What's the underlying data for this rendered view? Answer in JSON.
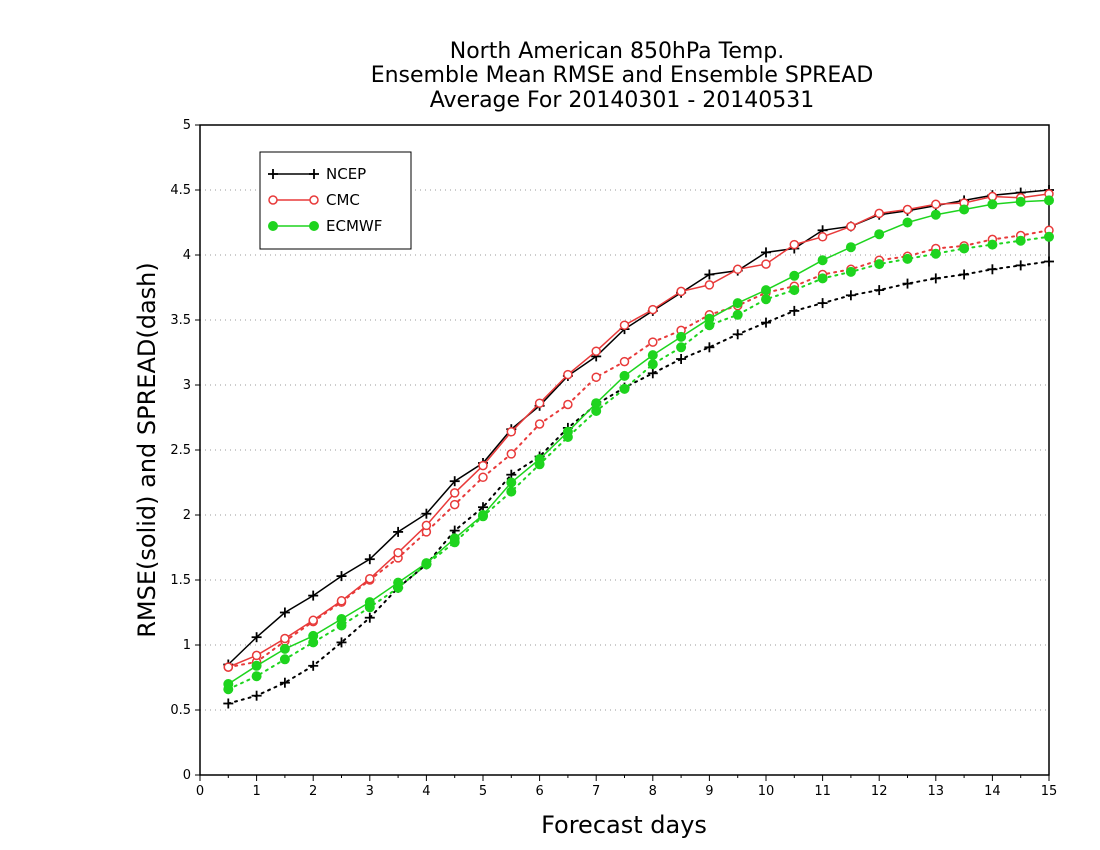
{
  "chart_data": {
    "type": "line",
    "title": [
      "North American 850hPa Temp.",
      "Ensemble Mean RMSE and Ensemble SPREAD",
      "Average For 20140301 - 20140531"
    ],
    "xlabel": "Forecast days",
    "ylabel": "RMSE(solid) and SPREAD(dash)",
    "xlim": [
      0,
      15
    ],
    "ylim": [
      0,
      5
    ],
    "x_ticks": [
      "0",
      "1",
      "2",
      "3",
      "4",
      "5",
      "6",
      "7",
      "8",
      "9",
      "10",
      "11",
      "12",
      "13",
      "14",
      "15"
    ],
    "y_ticks": [
      "0",
      "0.5",
      "1",
      "1.5",
      "2",
      "2.5",
      "3",
      "3.5",
      "4",
      "4.5",
      "5"
    ],
    "grid": "dotted horizontal",
    "legend_position": "top-left",
    "x": [
      0.5,
      1,
      1.5,
      2,
      2.5,
      3,
      3.5,
      4,
      4.5,
      5,
      5.5,
      6,
      6.5,
      7,
      7.5,
      8,
      8.5,
      9,
      9.5,
      10,
      10.5,
      11,
      11.5,
      12,
      12.5,
      13,
      13.5,
      14,
      14.5,
      15
    ],
    "series": [
      {
        "name": "NCEP",
        "color": "#000000",
        "marker": "plus",
        "rmse": [
          0.85,
          1.06,
          1.25,
          1.38,
          1.53,
          1.66,
          1.87,
          2.01,
          2.26,
          2.4,
          2.66,
          2.84,
          3.07,
          3.22,
          3.43,
          3.57,
          3.71,
          3.85,
          3.88,
          4.02,
          4.05,
          4.19,
          4.22,
          4.31,
          4.34,
          4.38,
          4.42,
          4.46,
          4.48,
          4.5
        ],
        "spread": [
          0.55,
          0.61,
          0.71,
          0.84,
          1.02,
          1.21,
          1.44,
          1.62,
          1.88,
          2.06,
          2.31,
          2.45,
          2.67,
          2.85,
          2.98,
          3.09,
          3.2,
          3.29,
          3.39,
          3.48,
          3.57,
          3.63,
          3.69,
          3.73,
          3.78,
          3.82,
          3.85,
          3.89,
          3.92,
          3.95
        ]
      },
      {
        "name": "CMC",
        "color": "#e83a3a",
        "marker": "open-circle",
        "rmse": [
          0.83,
          0.92,
          1.05,
          1.19,
          1.34,
          1.51,
          1.71,
          1.92,
          2.17,
          2.38,
          2.64,
          2.86,
          3.08,
          3.26,
          3.46,
          3.58,
          3.72,
          3.77,
          3.89,
          3.93,
          4.08,
          4.14,
          4.22,
          4.32,
          4.35,
          4.39,
          4.4,
          4.45,
          4.44,
          4.47
        ],
        "spread": [
          0.83,
          0.87,
          1.03,
          1.18,
          1.33,
          1.5,
          1.67,
          1.87,
          2.08,
          2.29,
          2.47,
          2.7,
          2.85,
          3.06,
          3.18,
          3.33,
          3.42,
          3.54,
          3.61,
          3.71,
          3.76,
          3.85,
          3.89,
          3.96,
          3.99,
          4.05,
          4.07,
          4.12,
          4.15,
          4.19
        ]
      },
      {
        "name": "ECMWF",
        "color": "#1ed41e",
        "marker": "filled-circle",
        "rmse": [
          0.7,
          0.84,
          0.97,
          1.07,
          1.2,
          1.33,
          1.48,
          1.63,
          1.82,
          2.0,
          2.25,
          2.43,
          2.64,
          2.86,
          3.07,
          3.23,
          3.37,
          3.51,
          3.63,
          3.73,
          3.84,
          3.96,
          4.06,
          4.16,
          4.25,
          4.31,
          4.35,
          4.39,
          4.41,
          4.42
        ],
        "spread": [
          0.66,
          0.76,
          0.89,
          1.02,
          1.15,
          1.29,
          1.44,
          1.62,
          1.79,
          1.99,
          2.18,
          2.39,
          2.6,
          2.8,
          2.97,
          3.16,
          3.29,
          3.46,
          3.54,
          3.66,
          3.73,
          3.82,
          3.87,
          3.93,
          3.97,
          4.01,
          4.05,
          4.08,
          4.11,
          4.14
        ]
      }
    ]
  }
}
